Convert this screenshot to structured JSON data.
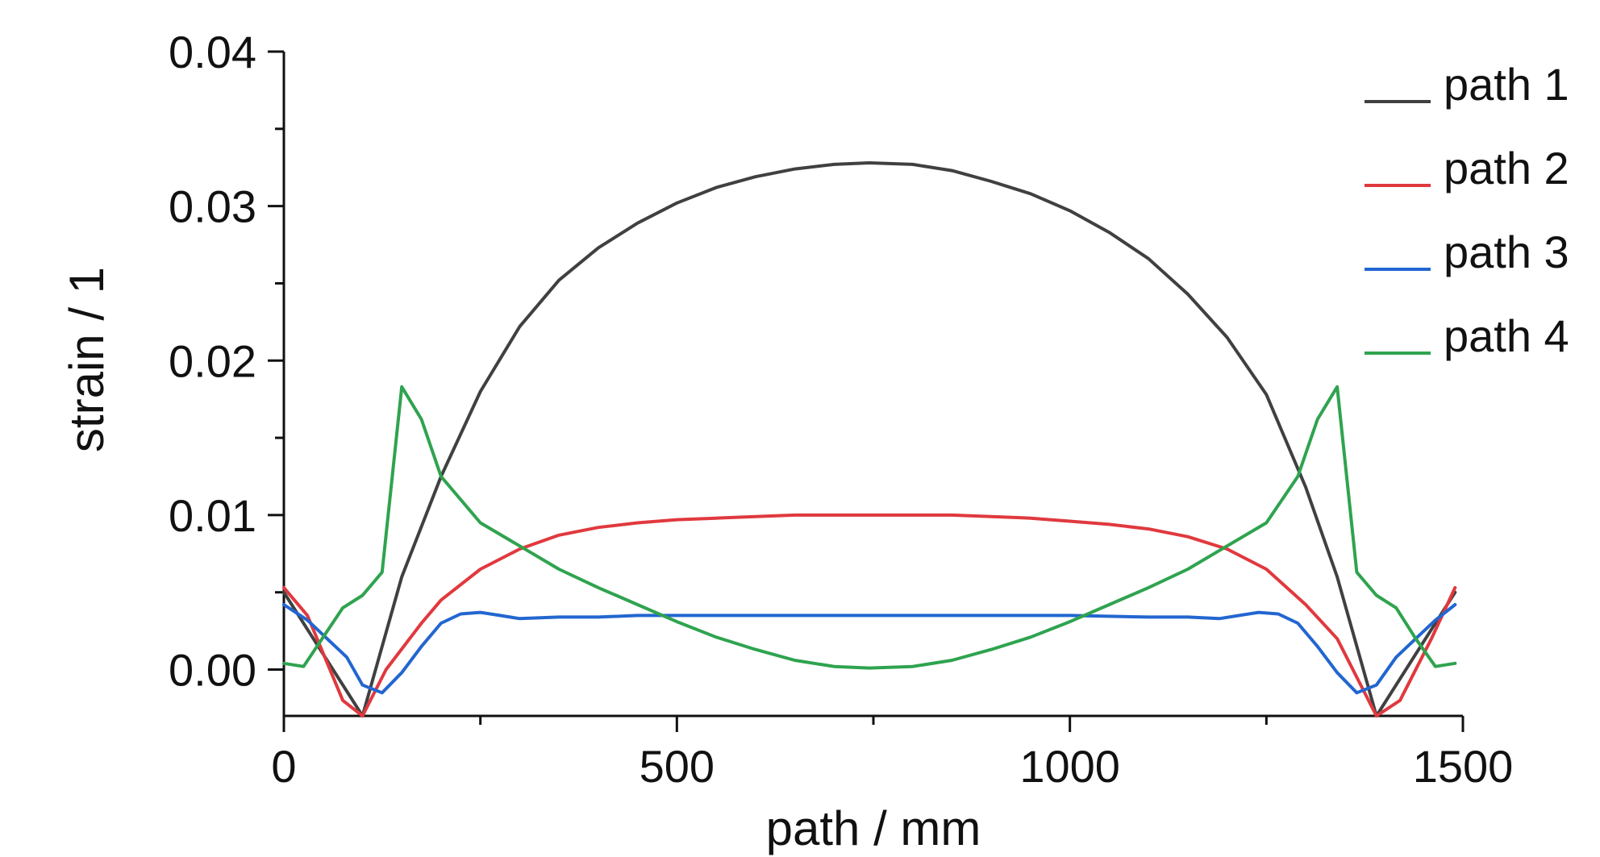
{
  "chart_data": {
    "type": "line",
    "title": "",
    "xlabel": "path / mm",
    "ylabel": "strain / 1",
    "xlim": [
      0,
      1500
    ],
    "ylim": [
      -0.003,
      0.04
    ],
    "x_ticks": [
      0,
      500,
      1000,
      1500
    ],
    "x_tick_labels": [
      "0",
      "500",
      "1000",
      "1500"
    ],
    "y_ticks": [
      0.0,
      0.01,
      0.02,
      0.03,
      0.04
    ],
    "y_tick_labels": [
      "0.00",
      "0.01",
      "0.02",
      "0.03",
      "0.04"
    ],
    "grid": false,
    "legend_position": "top-right",
    "series": [
      {
        "name": "path 1",
        "color": "#404040",
        "x": [
          0,
          50,
          100,
          150,
          200,
          250,
          300,
          350,
          400,
          450,
          500,
          550,
          600,
          650,
          700,
          745,
          800,
          850,
          900,
          950,
          1000,
          1050,
          1100,
          1150,
          1200,
          1250,
          1300,
          1340,
          1390,
          1440,
          1490
        ],
        "y": [
          0.005,
          0.001,
          -0.003,
          0.006,
          0.0125,
          0.018,
          0.0222,
          0.0252,
          0.0273,
          0.0289,
          0.0302,
          0.0312,
          0.0319,
          0.0324,
          0.0327,
          0.0328,
          0.0327,
          0.0323,
          0.0316,
          0.0308,
          0.0297,
          0.0283,
          0.0266,
          0.0243,
          0.0215,
          0.0178,
          0.0118,
          0.006,
          -0.003,
          0.001,
          0.005
        ]
      },
      {
        "name": "path 2",
        "color": "#e0393e",
        "x": [
          0,
          30,
          75,
          100,
          130,
          175,
          200,
          250,
          300,
          350,
          400,
          450,
          500,
          550,
          600,
          650,
          700,
          750,
          800,
          850,
          900,
          950,
          1000,
          1050,
          1100,
          1150,
          1200,
          1250,
          1300,
          1340,
          1390,
          1420,
          1460,
          1490
        ],
        "y": [
          0.0053,
          0.0035,
          -0.002,
          -0.003,
          0.0,
          0.003,
          0.0045,
          0.0065,
          0.0078,
          0.0087,
          0.0092,
          0.0095,
          0.0097,
          0.0098,
          0.0099,
          0.01,
          0.01,
          0.01,
          0.01,
          0.01,
          0.0099,
          0.0098,
          0.0096,
          0.0094,
          0.0091,
          0.0086,
          0.0078,
          0.0065,
          0.0042,
          0.002,
          -0.003,
          -0.002,
          0.002,
          0.0053
        ]
      },
      {
        "name": "path 3",
        "color": "#2266d0",
        "x": [
          0,
          30,
          80,
          100,
          125,
          150,
          175,
          200,
          225,
          250,
          275,
          300,
          350,
          400,
          450,
          500,
          600,
          700,
          745,
          800,
          900,
          1000,
          1100,
          1150,
          1190,
          1240,
          1265,
          1290,
          1315,
          1340,
          1365,
          1390,
          1415,
          1440,
          1465,
          1490
        ],
        "y": [
          0.0042,
          0.0032,
          0.0008,
          -0.001,
          -0.0015,
          -0.0002,
          0.0015,
          0.003,
          0.0036,
          0.0037,
          0.0035,
          0.0033,
          0.0034,
          0.0034,
          0.0035,
          0.0035,
          0.0035,
          0.0035,
          0.0035,
          0.0035,
          0.0035,
          0.0035,
          0.0034,
          0.0034,
          0.0033,
          0.0037,
          0.0036,
          0.003,
          0.0015,
          -0.0002,
          -0.0015,
          -0.001,
          0.0008,
          0.002,
          0.0032,
          0.0042
        ]
      },
      {
        "name": "path 4",
        "color": "#2fa34f",
        "x": [
          0,
          25,
          75,
          100,
          125,
          150,
          175,
          200,
          250,
          300,
          350,
          400,
          450,
          500,
          550,
          600,
          650,
          700,
          745,
          800,
          850,
          900,
          950,
          1000,
          1050,
          1100,
          1150,
          1200,
          1250,
          1290,
          1315,
          1340,
          1365,
          1390,
          1415,
          1440,
          1465,
          1490
        ],
        "y": [
          0.0004,
          0.0002,
          0.004,
          0.0048,
          0.0063,
          0.0183,
          0.0162,
          0.0125,
          0.0095,
          0.008,
          0.0065,
          0.0053,
          0.0042,
          0.0031,
          0.0021,
          0.0013,
          0.0006,
          0.0002,
          0.0001,
          0.0002,
          0.0006,
          0.0013,
          0.0021,
          0.0031,
          0.0042,
          0.0053,
          0.0065,
          0.008,
          0.0095,
          0.0125,
          0.0162,
          0.0183,
          0.0063,
          0.0048,
          0.004,
          0.002,
          0.0002,
          0.0004
        ]
      }
    ]
  }
}
